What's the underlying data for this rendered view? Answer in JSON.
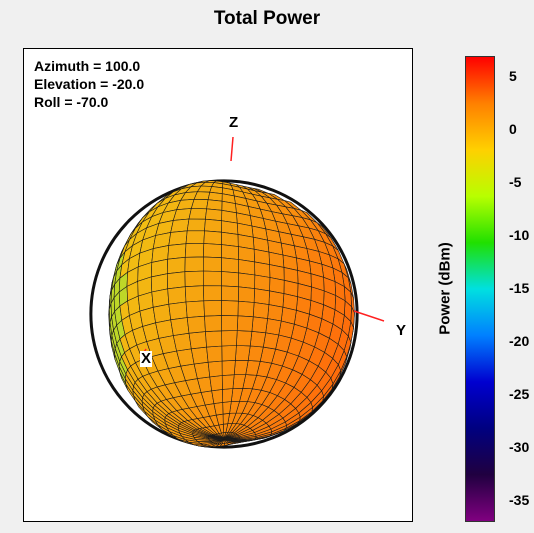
{
  "title": "Total Power",
  "view": {
    "azimuth": "Azimuth = 100.0",
    "elevation": "Elevation = -20.0",
    "roll": "Roll = -70.0"
  },
  "axes": {
    "x": "X",
    "y": "Y",
    "z": "Z"
  },
  "colorbar": {
    "label": "Power  (dBm)",
    "ticks": [
      "5",
      "0",
      "-5",
      "-10",
      "-15",
      "-20",
      "-25",
      "-30",
      "-35"
    ],
    "min": -37,
    "max": 7,
    "colormap": [
      "#ff0000",
      "#ff8000",
      "#ffd000",
      "#b8ff00",
      "#20e000",
      "#00e0e0",
      "#0080ff",
      "#0000d0",
      "#000080",
      "#200040",
      "#800080"
    ]
  },
  "chart_data": {
    "type": "3d-radiation-pattern",
    "title": "Total Power",
    "quantity": "Power  (dBm)",
    "color_range": [
      -37,
      7
    ],
    "value_range_shown": [
      -2,
      2
    ],
    "view": {
      "azimuth": 100.0,
      "elevation": -20.0,
      "roll": -70.0
    }
  }
}
